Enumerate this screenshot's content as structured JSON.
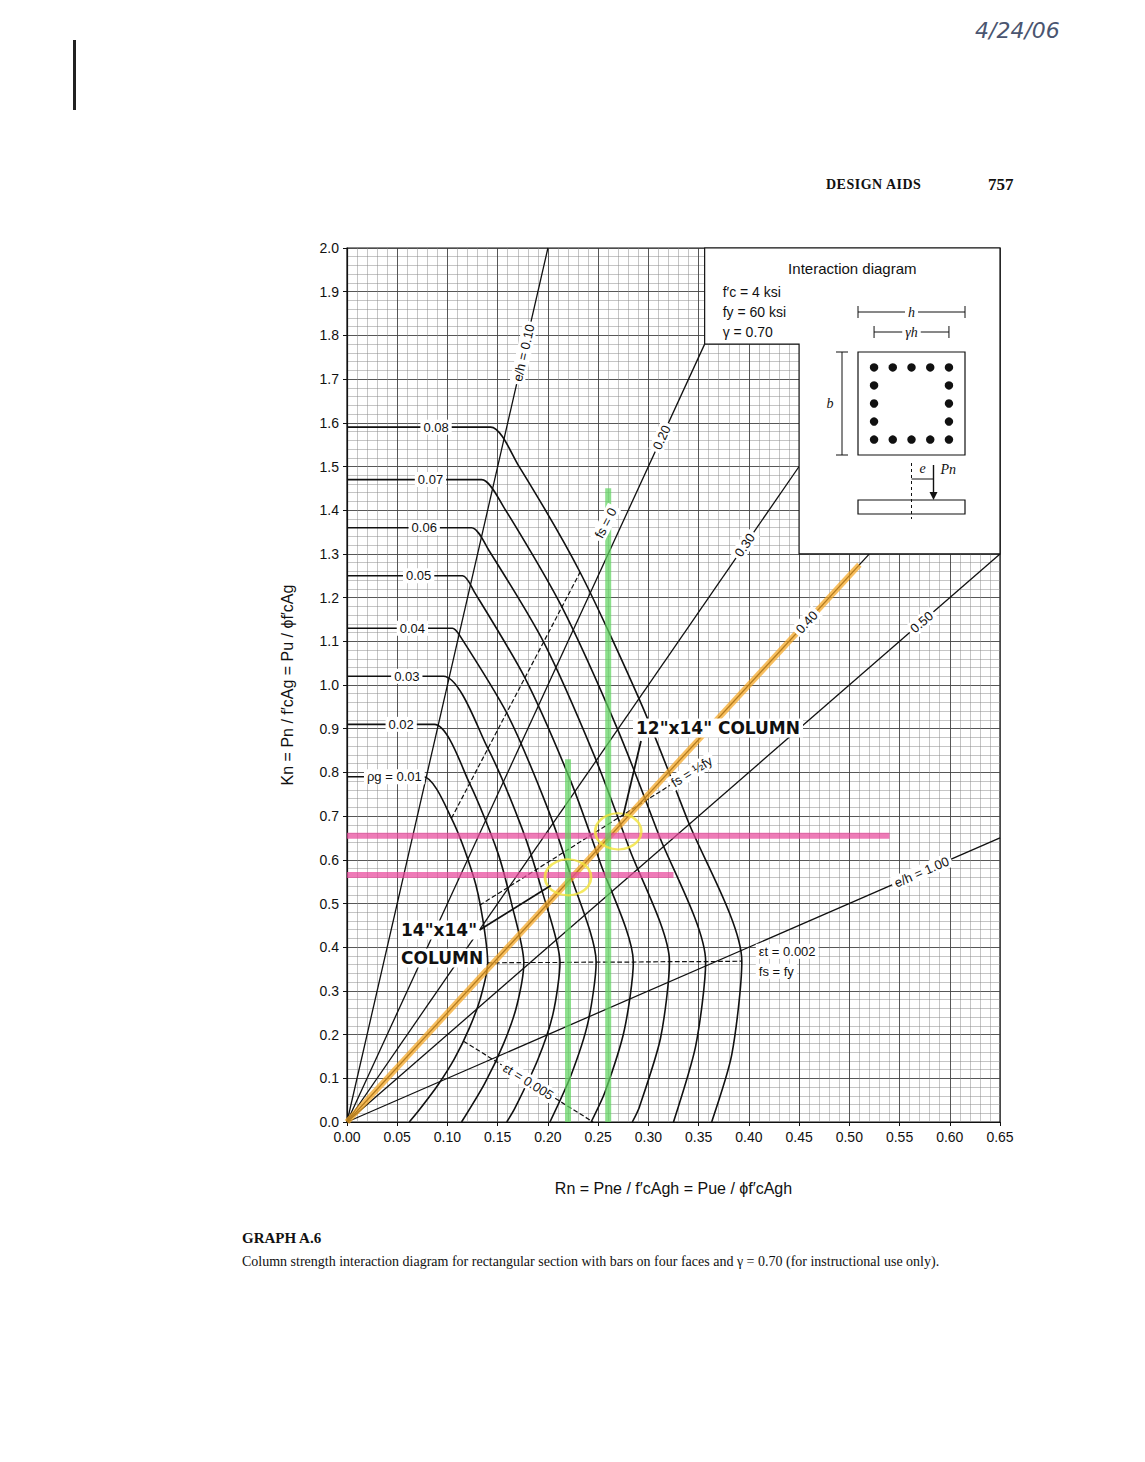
{
  "page": {
    "date": "4/24/06",
    "section": "DESIGN AIDS",
    "page_number": 757,
    "caption_title": "GRAPH A.6",
    "caption": "Column strength interaction diagram for rectangular section with bars on four faces and γ = 0.70 (for instructional use only)."
  },
  "chart_data": {
    "type": "line",
    "xlabel": "Rn = Pne / f′cAgh = Pue / ϕf′cAgh",
    "ylabel": "Kn = Pn / f′cAg = Pu / ϕf′cAg",
    "xlim": [
      0,
      0.65
    ],
    "xticks": [
      {
        "value": 0,
        "label": "0.00"
      },
      0.05,
      {
        "value": 0.1,
        "label": "0.10"
      },
      0.15,
      {
        "value": 0.2,
        "label": "0.20"
      },
      0.25,
      {
        "value": 0.3,
        "label": "0.30"
      },
      0.35,
      {
        "value": 0.4,
        "label": "0.40"
      },
      0.45,
      {
        "value": 0.5,
        "label": "0.50"
      },
      0.55,
      {
        "value": 0.6,
        "label": "0.60"
      },
      0.65
    ],
    "ylim": [
      0,
      2
    ],
    "yticks": [
      {
        "value": 0,
        "label": "0.0"
      },
      0.1,
      0.2,
      0.3,
      0.4,
      0.5,
      0.6,
      0.7,
      0.8,
      0.9,
      {
        "value": 1,
        "label": "1.0"
      },
      1.1,
      1.2,
      1.3,
      1.4,
      1.5,
      1.6,
      1.7,
      1.8,
      1.9,
      {
        "value": 2,
        "label": "2.0"
      }
    ],
    "grid": true,
    "inset": {
      "title": "Interaction diagram",
      "lines": [
        "f′c = 4 ksi",
        "fy = 60 ksi",
        "γ = 0.70"
      ],
      "sketch_labels": [
        "h",
        "γh",
        "b",
        "e",
        "Pn"
      ]
    },
    "series": [
      {
        "name": "ρg = 0.01",
        "type": "line",
        "line_style": "solid",
        "color": "#111111",
        "x": [
          0,
          0.076,
          0.104,
          0.126,
          0.135,
          0.14,
          0.133,
          0.122,
          0.107,
          0.09,
          0.072,
          0.062
        ],
        "values": [
          0.79,
          0.79,
          0.695,
          0.561,
          0.466,
          0.364,
          0.285,
          0.216,
          0.145,
          0.083,
          0.028,
          0
        ]
      },
      {
        "name": "0.02",
        "type": "line",
        "line_style": "solid",
        "color": "#111111",
        "x": [
          0,
          0.087,
          0.122,
          0.15,
          0.164,
          0.176,
          0.169,
          0.156,
          0.137,
          0.114
        ],
        "values": [
          0.91,
          0.91,
          0.775,
          0.617,
          0.498,
          0.365,
          0.266,
          0.18,
          0.088,
          0
        ]
      },
      {
        "name": "0.03",
        "type": "line",
        "line_style": "solid",
        "color": "#111111",
        "x": [
          0,
          0.096,
          0.14,
          0.174,
          0.194,
          0.212,
          0.205,
          0.19,
          0.167,
          0.159
        ],
        "values": [
          1.02,
          1.02,
          0.856,
          0.673,
          0.53,
          0.365,
          0.247,
          0.143,
          0.031,
          0
        ]
      },
      {
        "name": "0.04",
        "type": "line",
        "line_style": "solid",
        "color": "#111111",
        "x": [
          0,
          0.105,
          0.112,
          0.159,
          0.198,
          0.223,
          0.248,
          0.24,
          0.223,
          0.202
        ],
        "values": [
          1.13,
          1.13,
          1.114,
          0.936,
          0.728,
          0.562,
          0.366,
          0.229,
          0.107,
          0
        ]
      },
      {
        "name": "0.05",
        "type": "line",
        "line_style": "solid",
        "color": "#111111",
        "x": [
          0,
          0.115,
          0.127,
          0.177,
          0.222,
          0.252,
          0.285,
          0.276,
          0.257,
          0.243
        ],
        "values": [
          1.25,
          1.25,
          1.212,
          1.017,
          0.784,
          0.594,
          0.366,
          0.21,
          0.07,
          0
        ]
      },
      {
        "name": "0.06",
        "type": "line",
        "line_style": "solid",
        "color": "#111111",
        "x": [
          0,
          0.124,
          0.141,
          0.196,
          0.246,
          0.281,
          0.321,
          0.312,
          0.291,
          0.284
        ],
        "values": [
          1.36,
          1.36,
          1.309,
          1.097,
          0.839,
          0.626,
          0.367,
          0.191,
          0.034,
          0
        ]
      },
      {
        "name": "0.07",
        "type": "line",
        "line_style": "solid",
        "color": "#111111",
        "x": [
          0,
          0.134,
          0.156,
          0.214,
          0.27,
          0.31,
          0.357,
          0.347,
          0.325
        ],
        "values": [
          1.47,
          1.47,
          1.407,
          1.178,
          0.895,
          0.659,
          0.367,
          0.173,
          0
        ]
      },
      {
        "name": "0.08",
        "type": "line",
        "line_style": "solid",
        "color": "#111111",
        "x": [
          0,
          0.143,
          0.17,
          0.232,
          0.294,
          0.339,
          0.393,
          0.383,
          0.363
        ],
        "values": [
          1.59,
          1.59,
          1.505,
          1.258,
          0.951,
          0.691,
          0.368,
          0.154,
          0
        ]
      }
    ],
    "eh_lines": [
      {
        "name": "e/h = 0.10",
        "type": "line",
        "line_style": "solid",
        "color": "#111111",
        "x": [
          0,
          0.2
        ],
        "values": [
          0,
          2
        ]
      },
      {
        "name": "0.20",
        "type": "line",
        "line_style": "solid",
        "color": "#111111",
        "x": [
          0,
          0.356
        ],
        "values": [
          0,
          1.78
        ]
      },
      {
        "name": "0.30",
        "type": "line",
        "line_style": "solid",
        "color": "#111111",
        "x": [
          0,
          0.45
        ],
        "values": [
          0,
          1.5
        ]
      },
      {
        "name": "0.40",
        "type": "line",
        "line_style": "solid",
        "color": "#111111",
        "x": [
          0,
          0.52
        ],
        "values": [
          0,
          1.3
        ]
      },
      {
        "name": "0.50",
        "type": "line",
        "line_style": "solid",
        "color": "#111111",
        "x": [
          0,
          0.65
        ],
        "values": [
          0,
          1.3
        ]
      },
      {
        "name": "e/h = 1.00",
        "type": "line",
        "line_style": "solid",
        "color": "#111111",
        "x": [
          0,
          0.65
        ],
        "values": [
          0,
          0.65
        ]
      }
    ],
    "strain_lines": [
      {
        "name": "fs = 0",
        "type": "line",
        "line_style": "dashed",
        "color": "#111111",
        "x": [
          0.104,
          0.232
        ],
        "values": [
          0.695,
          1.258
        ]
      },
      {
        "name": "fs = ½fy",
        "type": "line",
        "line_style": "dashed",
        "color": "#111111",
        "x": [
          0.132,
          0.324
        ],
        "values": [
          0.496,
          0.774
        ]
      },
      {
        "name": "εt = 0.002",
        "note": "fs = fy",
        "type": "line",
        "line_style": "dashed",
        "color": "#111111",
        "x": [
          0.14,
          0.176,
          0.212,
          0.248,
          0.285,
          0.321,
          0.357,
          0.393
        ],
        "values": [
          0.364,
          0.365,
          0.365,
          0.366,
          0.366,
          0.367,
          0.367,
          0.368
        ]
      },
      {
        "name": "εt = 0.005",
        "type": "line",
        "line_style": "dashed",
        "color": "#111111",
        "x": [
          0.116,
          0.245
        ],
        "values": [
          0.185,
          0
        ]
      }
    ],
    "marks": [
      {
        "type": "line",
        "line_style": "solid",
        "color": "#f5a623",
        "x": [
          0,
          0.51
        ],
        "values": [
          0,
          1.275
        ]
      },
      {
        "type": "line",
        "line_style": "solid",
        "color": "#e8489b",
        "x": [
          0,
          0.54
        ],
        "values": [
          0.655,
          0.655
        ]
      },
      {
        "type": "line",
        "line_style": "solid",
        "color": "#e8489b",
        "x": [
          0,
          0.325
        ],
        "values": [
          0.565,
          0.565
        ]
      },
      {
        "type": "line",
        "line_style": "solid",
        "color": "#5fd35f",
        "x": [
          0.26,
          0.26
        ],
        "values": [
          0,
          1.45
        ]
      },
      {
        "type": "line",
        "line_style": "solid",
        "color": "#5fd35f",
        "x": [
          0.22,
          0.22
        ],
        "values": [
          0,
          0.83
        ]
      },
      {
        "type": "scatter",
        "marker": "circle",
        "color": "#f3e33a",
        "x": [
          0.27,
          0.22
        ],
        "values": [
          0.665,
          0.56
        ]
      }
    ],
    "annotations": [
      {
        "lines": [
          "12\"x14\" COLUMN"
        ]
      },
      {
        "lines": [
          "14\"x14\"",
          "COLUMN"
        ]
      }
    ]
  }
}
